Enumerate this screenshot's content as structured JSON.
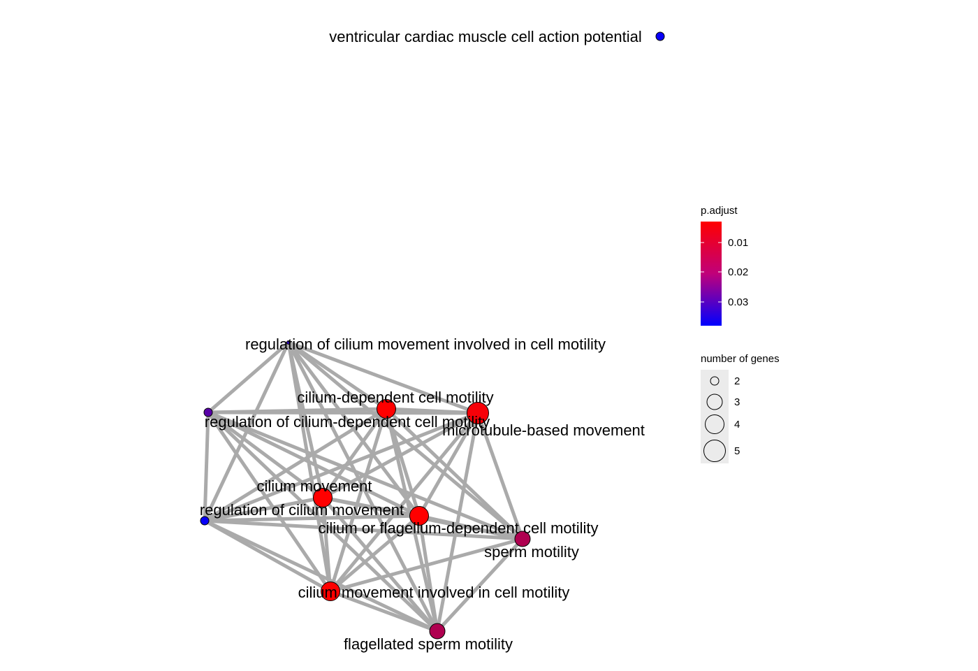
{
  "nodes": [
    {
      "id": "vcm",
      "label": "ventricular cardiac muscle cell action potential",
      "p_adjust": 0.035,
      "genes": 2
    },
    {
      "id": "rcmicm",
      "label": "regulation of cilium movement involved in cell motility",
      "p_adjust": 0.03,
      "genes": 1
    },
    {
      "id": "cdcm",
      "label": "cilium-dependent cell motility",
      "p_adjust": 0.004,
      "genes": 4
    },
    {
      "id": "mbm",
      "label": "microtubule-based movement",
      "p_adjust": 0.005,
      "genes": 5
    },
    {
      "id": "rcdcm",
      "label": "regulation of cilium-dependent cell motility",
      "p_adjust": 0.025,
      "genes": 2
    },
    {
      "id": "cm",
      "label": "cilium movement",
      "p_adjust": 0.004,
      "genes": 4
    },
    {
      "id": "rcm",
      "label": "regulation of cilium movement",
      "p_adjust": 0.035,
      "genes": 2
    },
    {
      "id": "cofdcm",
      "label": "cilium or flagellum-dependent cell motility",
      "p_adjust": 0.004,
      "genes": 4
    },
    {
      "id": "sm",
      "label": "sperm motility",
      "p_adjust": 0.014,
      "genes": 3
    },
    {
      "id": "cmicm",
      "label": "cilium movement involved in cell motility",
      "p_adjust": 0.004,
      "genes": 4
    },
    {
      "id": "fsm",
      "label": "flagellated sperm motility",
      "p_adjust": 0.014,
      "genes": 3
    }
  ],
  "edges": [
    [
      "rcmicm",
      "cdcm"
    ],
    [
      "rcmicm",
      "mbm"
    ],
    [
      "rcmicm",
      "rcdcm"
    ],
    [
      "rcmicm",
      "cm"
    ],
    [
      "rcmicm",
      "rcm"
    ],
    [
      "rcmicm",
      "cofdcm"
    ],
    [
      "rcmicm",
      "sm"
    ],
    [
      "rcmicm",
      "cmicm"
    ],
    [
      "rcmicm",
      "fsm"
    ],
    [
      "rcdcm",
      "cdcm"
    ],
    [
      "rcdcm",
      "mbm"
    ],
    [
      "rcdcm",
      "cm"
    ],
    [
      "rcdcm",
      "rcm"
    ],
    [
      "rcdcm",
      "cofdcm"
    ],
    [
      "rcdcm",
      "sm"
    ],
    [
      "rcdcm",
      "cmicm"
    ],
    [
      "rcdcm",
      "fsm"
    ],
    [
      "cdcm",
      "mbm"
    ],
    [
      "cdcm",
      "cm"
    ],
    [
      "cdcm",
      "rcm"
    ],
    [
      "cdcm",
      "cofdcm"
    ],
    [
      "cdcm",
      "sm"
    ],
    [
      "cdcm",
      "cmicm"
    ],
    [
      "cdcm",
      "fsm"
    ],
    [
      "mbm",
      "cm"
    ],
    [
      "mbm",
      "rcm"
    ],
    [
      "mbm",
      "cofdcm"
    ],
    [
      "mbm",
      "sm"
    ],
    [
      "mbm",
      "cmicm"
    ],
    [
      "mbm",
      "fsm"
    ],
    [
      "cm",
      "rcm"
    ],
    [
      "cm",
      "cofdcm"
    ],
    [
      "cm",
      "sm"
    ],
    [
      "cm",
      "cmicm"
    ],
    [
      "cm",
      "fsm"
    ],
    [
      "rcm",
      "cofdcm"
    ],
    [
      "rcm",
      "cmicm"
    ],
    [
      "rcm",
      "fsm"
    ],
    [
      "rcm",
      "sm"
    ],
    [
      "cofdcm",
      "sm"
    ],
    [
      "cofdcm",
      "cmicm"
    ],
    [
      "cofdcm",
      "fsm"
    ],
    [
      "sm",
      "cmicm"
    ],
    [
      "sm",
      "fsm"
    ],
    [
      "cmicm",
      "fsm"
    ]
  ],
  "legend": {
    "color_title": "p.adjust",
    "color_ticks": [
      "0.01",
      "0.02",
      "0.03"
    ],
    "color_high": "#FF0000",
    "color_low": "#0000FF",
    "size_title": "number of genes",
    "size_ticks": [
      "2",
      "3",
      "4",
      "5"
    ]
  },
  "colors": {
    "edge": "#AAAAAA",
    "legend_key_bg": "#EBEBEB"
  }
}
